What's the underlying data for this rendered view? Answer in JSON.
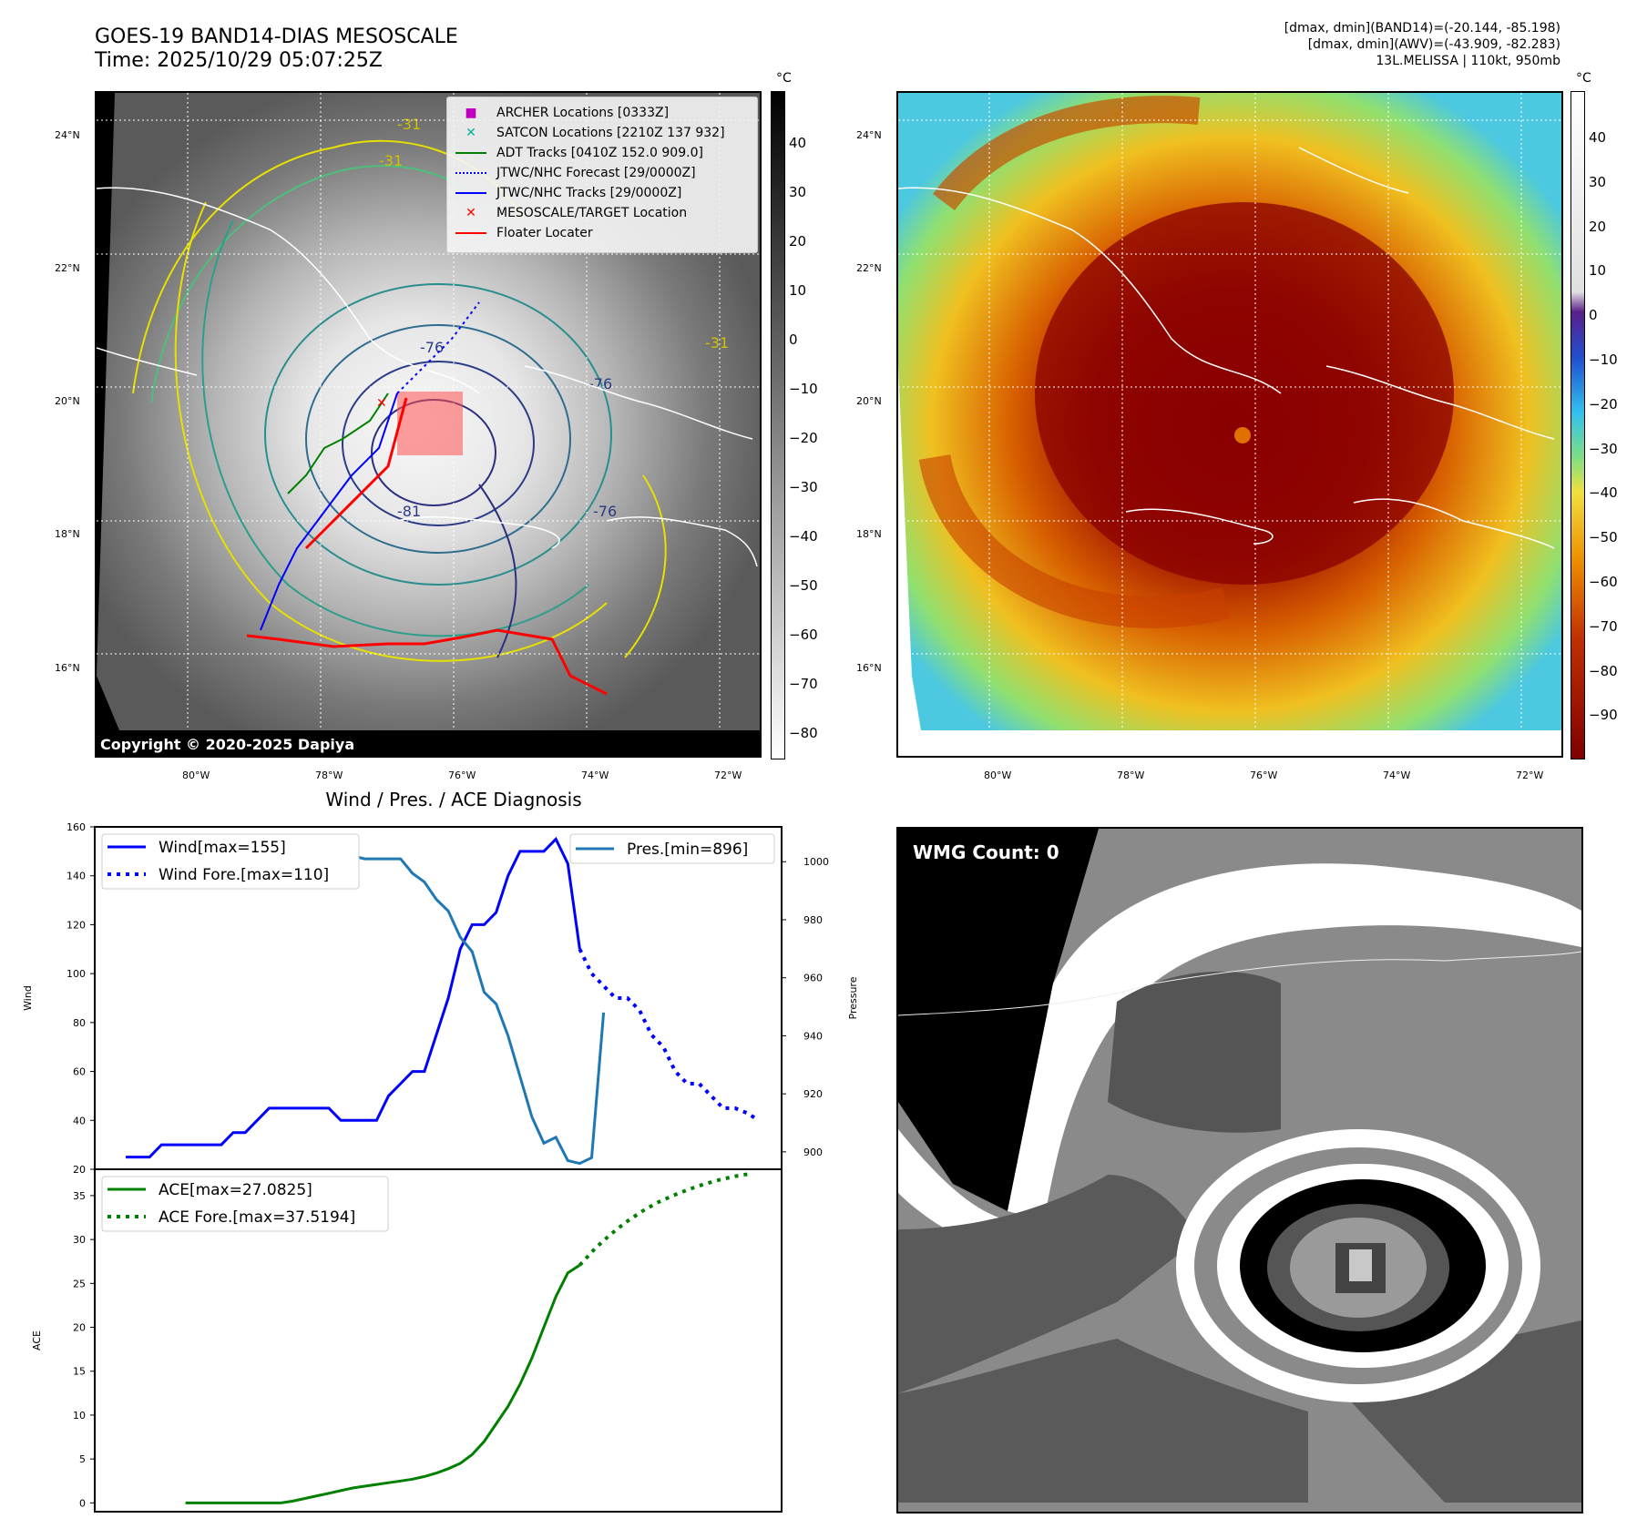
{
  "header": {
    "title_line1": "GOES-19 BAND14-DIAS MESOSCALE",
    "title_line2": "Time: 2025/10/29 05:07:25Z",
    "info_line1": "[dmax, dmin](BAND14)=(-20.144, -85.198)",
    "info_line2": "[dmax, dmin](AWV)=(-43.909, -82.283)",
    "info_line3": "13L.MELISSA | 110kt, 950mb"
  },
  "map_left": {
    "unit": "°C",
    "copyright": "Copyright © 2020-2025 Dapiya",
    "lat_labels": [
      "24°N",
      "22°N",
      "20°N",
      "18°N",
      "16°N"
    ],
    "lon_labels": [
      "80°W",
      "78°W",
      "76°W",
      "74°W",
      "72°W"
    ],
    "colorbar_ticks": [
      "40",
      "30",
      "20",
      "10",
      "0",
      "−10",
      "−20",
      "−30",
      "−40",
      "−50",
      "−60",
      "−70",
      "−80"
    ],
    "contour_labels": [
      "-31",
      "-31",
      "-31",
      "-76",
      "-76",
      "-81",
      "-76"
    ],
    "legend": [
      {
        "label": "ARCHER Locations [0333Z]",
        "color": "#c000c0",
        "marker": "square"
      },
      {
        "label": "SATCON Locations [2210Z 137 932]",
        "color": "#00b0a0",
        "marker": "x"
      },
      {
        "label": "ADT Tracks [0410Z 152.0 909.0]",
        "color": "#008000",
        "marker": "line"
      },
      {
        "label": "JTWC/NHC Forecast [29/0000Z]",
        "color": "#0000ff",
        "marker": "dotted"
      },
      {
        "label": "JTWC/NHC Tracks [29/0000Z]",
        "color": "#0000ff",
        "marker": "line-dot"
      },
      {
        "label": "MESOSCALE/TARGET Location",
        "color": "#ff0000",
        "marker": "x"
      },
      {
        "label": "Floater Locater",
        "color": "#ff0000",
        "marker": "line"
      }
    ]
  },
  "map_right": {
    "unit": "°C",
    "lat_labels": [
      "24°N",
      "22°N",
      "20°N",
      "18°N",
      "16°N"
    ],
    "lon_labels": [
      "80°W",
      "78°W",
      "76°W",
      "74°W",
      "72°W"
    ],
    "colorbar_ticks": [
      "40",
      "30",
      "20",
      "10",
      "0",
      "−10",
      "−20",
      "−30",
      "−40",
      "−50",
      "−60",
      "−70",
      "−80",
      "−90"
    ]
  },
  "diag": {
    "title": "Wind / Pres. / ACE Diagnosis",
    "wind_ylabel": "Wind",
    "pres_ylabel": "Pressure",
    "ace_ylabel": "ACE",
    "legend_wind": "Wind[max=155]",
    "legend_wind_fore": "Wind Fore.[max=110]",
    "legend_pres": "Pres.[min=896]",
    "legend_ace": "ACE[max=27.0825]",
    "legend_ace_fore": "ACE Fore.[max=37.5194]",
    "colors": {
      "wind": "#0000ff",
      "pres": "#1f77b4",
      "ace": "#008000"
    }
  },
  "wmg": {
    "label": "WMG Count: 0"
  },
  "chart_data": [
    {
      "type": "line",
      "title": "Wind / Pres. / ACE Diagnosis",
      "ylabel": "Wind",
      "ylim": [
        20,
        160
      ],
      "yticks": [
        20,
        40,
        60,
        80,
        100,
        120,
        140,
        160
      ],
      "series": [
        {
          "name": "Wind[max=155]",
          "style": "solid",
          "values": [
            25,
            25,
            25,
            30,
            30,
            30,
            30,
            30,
            30,
            35,
            35,
            40,
            45,
            45,
            45,
            45,
            45,
            45,
            40,
            40,
            40,
            40,
            50,
            55,
            60,
            60,
            75,
            90,
            110,
            120,
            120,
            125,
            140,
            150,
            150,
            150,
            155,
            145,
            110
          ]
        },
        {
          "name": "Wind Fore.[max=110]",
          "style": "dotted",
          "values": [
            110,
            100,
            95,
            90,
            90,
            85,
            75,
            70,
            60,
            55,
            55,
            50,
            45,
            45,
            43,
            40
          ],
          "start_index": 38
        }
      ]
    },
    {
      "type": "line",
      "ylabel": "Pressure",
      "ylim": [
        894,
        1012
      ],
      "yticks": [
        900,
        920,
        940,
        960,
        980,
        1000
      ],
      "series": [
        {
          "name": "Pres.[min=896]",
          "style": "solid",
          "values": [
            1009,
            1009,
            1009,
            1009,
            1008,
            1008,
            1007,
            1007,
            1006,
            1006,
            1005,
            1004,
            1004,
            1003,
            1003,
            1003,
            1003,
            1002,
            1002,
            1002,
            1001,
            1001,
            1001,
            1001,
            996,
            993,
            987,
            983,
            974,
            969,
            955,
            951,
            940,
            926,
            912,
            903,
            905,
            897,
            896,
            898,
            948
          ]
        }
      ]
    },
    {
      "type": "line",
      "ylabel": "ACE",
      "ylim": [
        -1,
        38
      ],
      "yticks": [
        0,
        5,
        10,
        15,
        20,
        25,
        30,
        35
      ],
      "series": [
        {
          "name": "ACE[max=27.0825]",
          "style": "solid",
          "values": [
            0,
            0,
            0,
            0,
            0,
            0,
            0,
            0,
            0,
            0.2,
            0.5,
            0.8,
            1.1,
            1.4,
            1.7,
            1.9,
            2.1,
            2.3,
            2.5,
            2.7,
            3.0,
            3.4,
            3.9,
            4.5,
            5.5,
            7.0,
            9.0,
            11.0,
            13.5,
            16.5,
            20.0,
            23.5,
            26.2,
            27.08
          ]
        },
        {
          "name": "ACE Fore.[max=37.5194]",
          "style": "dotted",
          "start_index": 33,
          "values": [
            27.08,
            29.0,
            30.6,
            32.0,
            33.2,
            34.2,
            35.0,
            35.7,
            36.3,
            36.8,
            37.2,
            37.5
          ]
        }
      ]
    }
  ]
}
